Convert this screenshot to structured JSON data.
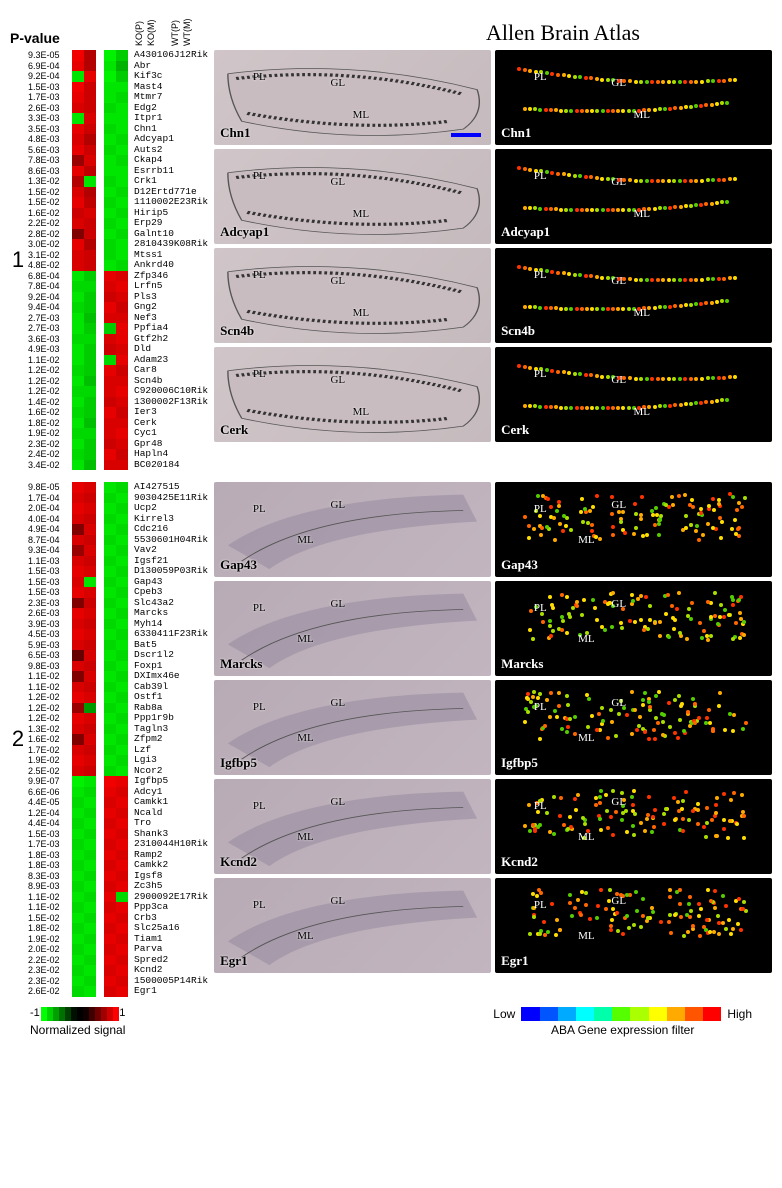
{
  "headers": {
    "pvalue": "P-value",
    "columns": [
      "KO(P)",
      "KO(M)",
      "WT(P)",
      "WT(M)"
    ],
    "atlas_title": "Allen Brain Atlas"
  },
  "section_labels": [
    "1",
    "2"
  ],
  "group1a": [
    {
      "p": "9.3E-05",
      "g": "A430106J12Rik",
      "c": [
        0.95,
        0.7,
        -0.95,
        -0.8
      ]
    },
    {
      "p": "6.9E-04",
      "g": "Abr",
      "c": [
        0.9,
        0.7,
        -0.9,
        -0.7
      ]
    },
    {
      "p": "9.2E-04",
      "g": "Kif3c",
      "c": [
        -0.9,
        0.9,
        -0.95,
        -0.8
      ]
    },
    {
      "p": "1.5E-03",
      "g": "Mast4",
      "c": [
        0.95,
        0.8,
        -0.9,
        -0.9
      ]
    },
    {
      "p": "1.7E-03",
      "g": "Mtmr7",
      "c": [
        0.9,
        0.8,
        -0.9,
        -0.85
      ]
    },
    {
      "p": "2.6E-03",
      "g": "Edg2",
      "c": [
        0.85,
        0.8,
        -0.85,
        -0.9
      ]
    },
    {
      "p": "3.3E-03",
      "g": "Itpr1",
      "c": [
        -0.9,
        0.85,
        -0.9,
        -0.9
      ]
    },
    {
      "p": "3.5E-03",
      "g": "Chn1",
      "c": [
        0.9,
        0.8,
        -0.85,
        -0.9
      ]
    },
    {
      "p": "4.8E-03",
      "g": "Adcyap1",
      "c": [
        0.85,
        0.7,
        -0.9,
        -0.85
      ]
    },
    {
      "p": "5.6E-03",
      "g": "Auts2",
      "c": [
        0.9,
        0.8,
        -0.85,
        -0.9
      ]
    },
    {
      "p": "7.8E-03",
      "g": "Ckap4",
      "c": [
        0.6,
        0.85,
        -0.9,
        -0.85
      ]
    },
    {
      "p": "8.6E-03",
      "g": "Esrrb11",
      "c": [
        0.9,
        0.75,
        -0.9,
        -0.9
      ]
    },
    {
      "p": "1.3E-02",
      "g": "Crk1",
      "c": [
        0.7,
        -0.9,
        -0.85,
        -0.9
      ]
    },
    {
      "p": "1.5E-02",
      "g": "D12Ertd771e",
      "c": [
        0.85,
        0.7,
        -0.9,
        -0.85
      ]
    },
    {
      "p": "1.5E-02",
      "g": "1110002E23Rik",
      "c": [
        0.9,
        0.75,
        -0.85,
        -0.9
      ]
    },
    {
      "p": "1.6E-02",
      "g": "Hirip5",
      "c": [
        0.8,
        0.85,
        -0.9,
        -0.85
      ]
    },
    {
      "p": "2.2E-02",
      "g": "Erp29",
      "c": [
        0.85,
        0.8,
        -0.85,
        -0.9
      ]
    },
    {
      "p": "2.8E-02",
      "g": "Galnt10",
      "c": [
        0.5,
        0.8,
        -0.9,
        -0.85
      ]
    },
    {
      "p": "3.0E-02",
      "g": "2810439K08Rik",
      "c": [
        0.9,
        0.7,
        -0.85,
        -0.9
      ]
    },
    {
      "p": "3.1E-02",
      "g": "Mtss1",
      "c": [
        0.85,
        0.8,
        -0.85,
        -0.9
      ]
    },
    {
      "p": "4.8E-02",
      "g": "Ankrd40",
      "c": [
        0.85,
        0.8,
        -0.9,
        -0.85
      ]
    }
  ],
  "group1b": [
    {
      "p": "6.8E-04",
      "g": "Zfp346",
      "c": [
        -0.9,
        -0.8,
        0.9,
        0.85
      ]
    },
    {
      "p": "7.8E-04",
      "g": "Lrfn5",
      "c": [
        -0.85,
        -0.85,
        0.85,
        0.9
      ]
    },
    {
      "p": "9.2E-04",
      "g": "Pls3",
      "c": [
        -0.9,
        -0.8,
        0.8,
        0.85
      ]
    },
    {
      "p": "9.4E-04",
      "g": "Gng2",
      "c": [
        -0.85,
        -0.8,
        0.9,
        0.8
      ]
    },
    {
      "p": "2.7E-03",
      "g": "Nef3",
      "c": [
        -0.9,
        -0.75,
        0.85,
        0.85
      ]
    },
    {
      "p": "2.7E-03",
      "g": "Ppfia4",
      "c": [
        -0.9,
        -0.8,
        -0.8,
        0.9
      ]
    },
    {
      "p": "3.6E-03",
      "g": "Gtf2h2",
      "c": [
        -0.85,
        -0.85,
        0.85,
        0.9
      ]
    },
    {
      "p": "4.9E-03",
      "g": "Dld",
      "c": [
        -0.9,
        -0.8,
        0.8,
        0.85
      ]
    },
    {
      "p": "1.1E-02",
      "g": "Adam23",
      "c": [
        -0.9,
        -0.8,
        -0.85,
        0.9
      ]
    },
    {
      "p": "1.2E-02",
      "g": "Car8",
      "c": [
        -0.85,
        -0.8,
        0.9,
        0.8
      ]
    },
    {
      "p": "1.2E-02",
      "g": "Scn4b",
      "c": [
        -0.9,
        -0.75,
        0.85,
        0.85
      ]
    },
    {
      "p": "1.2E-02",
      "g": "C920006C10Rik",
      "c": [
        -0.85,
        -0.85,
        0.85,
        0.9
      ]
    },
    {
      "p": "1.4E-02",
      "g": "1300002F13Rik",
      "c": [
        -0.9,
        -0.8,
        0.8,
        0.85
      ]
    },
    {
      "p": "1.6E-02",
      "g": "Ier3",
      "c": [
        -0.85,
        -0.8,
        0.9,
        0.8
      ]
    },
    {
      "p": "1.8E-02",
      "g": "Cerk",
      "c": [
        -0.9,
        -0.75,
        0.85,
        0.85
      ]
    },
    {
      "p": "1.9E-02",
      "g": "Cyc1",
      "c": [
        -0.85,
        -0.85,
        0.85,
        0.9
      ]
    },
    {
      "p": "2.3E-02",
      "g": "Gpr48",
      "c": [
        -0.9,
        -0.8,
        0.8,
        0.85
      ]
    },
    {
      "p": "2.4E-02",
      "g": "Hapln4",
      "c": [
        -0.85,
        -0.8,
        0.9,
        0.8
      ]
    },
    {
      "p": "3.4E-02",
      "g": "BC020184",
      "c": [
        -0.9,
        -0.75,
        0.85,
        0.85
      ]
    }
  ],
  "group2a": [
    {
      "p": "9.8E-05",
      "g": "AI427515",
      "c": [
        0.9,
        0.85,
        -0.9,
        -0.85
      ]
    },
    {
      "p": "1.7E-04",
      "g": "9030425E11Rik",
      "c": [
        0.85,
        0.8,
        -0.85,
        -0.9
      ]
    },
    {
      "p": "2.0E-04",
      "g": "Ucp2",
      "c": [
        0.9,
        0.85,
        -0.9,
        -0.85
      ]
    },
    {
      "p": "4.0E-04",
      "g": "Kirrel3",
      "c": [
        0.85,
        0.8,
        -0.85,
        -0.9
      ]
    },
    {
      "p": "4.9E-04",
      "g": "Cdc216",
      "c": [
        0.5,
        0.85,
        -0.9,
        -0.85
      ]
    },
    {
      "p": "8.7E-04",
      "g": "5530601H04Rik",
      "c": [
        0.85,
        0.8,
        -0.85,
        -0.9
      ]
    },
    {
      "p": "9.3E-04",
      "g": "Vav2",
      "c": [
        0.6,
        0.85,
        -0.9,
        -0.85
      ]
    },
    {
      "p": "1.1E-03",
      "g": "Igsf21",
      "c": [
        0.85,
        0.8,
        -0.85,
        -0.9
      ]
    },
    {
      "p": "1.5E-03",
      "g": "D130059P03Rik",
      "c": [
        0.9,
        0.85,
        -0.9,
        -0.85
      ]
    },
    {
      "p": "1.5E-03",
      "g": "Gap43",
      "c": [
        0.85,
        -0.9,
        -0.85,
        -0.9
      ]
    },
    {
      "p": "1.5E-03",
      "g": "Cpeb3",
      "c": [
        0.9,
        0.85,
        -0.9,
        -0.85
      ]
    },
    {
      "p": "2.3E-03",
      "g": "Slc43a2",
      "c": [
        0.5,
        0.8,
        -0.85,
        -0.9
      ]
    },
    {
      "p": "2.6E-03",
      "g": "Marcks",
      "c": [
        0.9,
        0.85,
        -0.9,
        -0.85
      ]
    },
    {
      "p": "3.9E-03",
      "g": "Myh14",
      "c": [
        0.85,
        0.8,
        -0.85,
        -0.9
      ]
    },
    {
      "p": "4.5E-03",
      "g": "6330411F23Rik",
      "c": [
        0.9,
        0.85,
        -0.9,
        -0.85
      ]
    },
    {
      "p": "5.9E-03",
      "g": "Bat5",
      "c": [
        0.85,
        0.8,
        -0.85,
        -0.9
      ]
    },
    {
      "p": "6.5E-03",
      "g": "Dscr1l2",
      "c": [
        0.4,
        0.85,
        -0.9,
        -0.85
      ]
    },
    {
      "p": "9.8E-03",
      "g": "Foxp1",
      "c": [
        0.85,
        0.8,
        -0.85,
        -0.9
      ]
    },
    {
      "p": "1.1E-02",
      "g": "DXImx46e",
      "c": [
        0.5,
        0.85,
        -0.9,
        -0.85
      ]
    },
    {
      "p": "1.1E-02",
      "g": "Cab39l",
      "c": [
        0.85,
        0.8,
        -0.85,
        -0.9
      ]
    },
    {
      "p": "1.2E-02",
      "g": "Ostf1",
      "c": [
        0.9,
        0.85,
        -0.9,
        -0.85
      ]
    },
    {
      "p": "1.2E-02",
      "g": "Rab8a",
      "c": [
        0.6,
        -0.6,
        -0.85,
        -0.9
      ]
    },
    {
      "p": "1.2E-02",
      "g": "Ppp1r9b",
      "c": [
        0.9,
        0.85,
        -0.9,
        -0.85
      ]
    },
    {
      "p": "1.3E-02",
      "g": "Tagln3",
      "c": [
        0.85,
        0.8,
        -0.85,
        -0.9
      ]
    },
    {
      "p": "1.6E-02",
      "g": "Zfpm2",
      "c": [
        0.5,
        0.85,
        -0.9,
        -0.85
      ]
    },
    {
      "p": "1.7E-02",
      "g": "Lzf",
      "c": [
        0.85,
        0.8,
        -0.85,
        -0.9
      ]
    },
    {
      "p": "1.9E-02",
      "g": "Lgi3",
      "c": [
        0.9,
        0.85,
        -0.9,
        -0.85
      ]
    },
    {
      "p": "2.5E-02",
      "g": "Ncor2",
      "c": [
        0.85,
        0.8,
        -0.85,
        -0.9
      ]
    }
  ],
  "group2b": [
    {
      "p": "9.9E-07",
      "g": "Igfbp5",
      "c": [
        -0.95,
        -0.9,
        0.95,
        0.9
      ]
    },
    {
      "p": "6.6E-06",
      "g": "Adcy1",
      "c": [
        -0.9,
        -0.85,
        0.9,
        0.85
      ]
    },
    {
      "p": "4.4E-05",
      "g": "Camkk1",
      "c": [
        -0.85,
        -0.9,
        0.85,
        0.9
      ]
    },
    {
      "p": "1.2E-04",
      "g": "Ncald",
      "c": [
        -0.9,
        -0.85,
        0.9,
        0.85
      ]
    },
    {
      "p": "4.4E-04",
      "g": "Tro",
      "c": [
        -0.85,
        -0.9,
        0.85,
        0.9
      ]
    },
    {
      "p": "1.5E-03",
      "g": "Shank3",
      "c": [
        -0.9,
        -0.85,
        0.9,
        0.85
      ]
    },
    {
      "p": "1.7E-03",
      "g": "2310044H10Rik",
      "c": [
        -0.85,
        -0.9,
        0.85,
        0.9
      ]
    },
    {
      "p": "1.8E-03",
      "g": "Ramp2",
      "c": [
        -0.9,
        -0.85,
        0.9,
        0.85
      ]
    },
    {
      "p": "1.8E-03",
      "g": "Camkk2",
      "c": [
        -0.85,
        -0.9,
        0.85,
        0.9
      ]
    },
    {
      "p": "8.3E-03",
      "g": "Igsf8",
      "c": [
        -0.9,
        -0.85,
        0.9,
        0.85
      ]
    },
    {
      "p": "8.9E-03",
      "g": "Zc3h5",
      "c": [
        -0.85,
        -0.9,
        0.85,
        0.9
      ]
    },
    {
      "p": "1.1E-02",
      "g": "2900092E17Rik",
      "c": [
        -0.9,
        -0.85,
        0.9,
        -0.85
      ]
    },
    {
      "p": "1.1E-02",
      "g": "Ppp3ca",
      "c": [
        -0.85,
        -0.9,
        0.85,
        0.9
      ]
    },
    {
      "p": "1.5E-02",
      "g": "Crb3",
      "c": [
        -0.9,
        -0.85,
        0.9,
        0.85
      ]
    },
    {
      "p": "1.8E-02",
      "g": "Slc25a16",
      "c": [
        -0.85,
        -0.9,
        0.85,
        0.9
      ]
    },
    {
      "p": "1.9E-02",
      "g": "Tiam1",
      "c": [
        -0.9,
        -0.85,
        0.9,
        0.85
      ]
    },
    {
      "p": "2.0E-02",
      "g": "Parva",
      "c": [
        -0.85,
        -0.9,
        0.85,
        0.9
      ]
    },
    {
      "p": "2.2E-02",
      "g": "Spred2",
      "c": [
        -0.9,
        -0.85,
        0.9,
        0.85
      ]
    },
    {
      "p": "2.3E-02",
      "g": "Kcnd2",
      "c": [
        -0.85,
        -0.9,
        0.85,
        0.9
      ]
    },
    {
      "p": "2.3E-02",
      "g": "1500005P14Rik",
      "c": [
        -0.9,
        -0.85,
        0.9,
        0.85
      ]
    },
    {
      "p": "2.6E-02",
      "g": "Egr1",
      "c": [
        -0.85,
        -0.9,
        0.85,
        0.9
      ]
    }
  ],
  "atlas_panels_1": [
    {
      "gene": "Chn1",
      "annots": [
        "PL",
        "GL",
        "ML"
      ],
      "scale_bar": true
    },
    {
      "gene": "Adcyap1",
      "annots": [
        "PL",
        "GL",
        "ML"
      ]
    },
    {
      "gene": "Scn4b",
      "annots": [
        "PL",
        "GL",
        "ML"
      ]
    },
    {
      "gene": "Cerk",
      "annots": [
        "PL",
        "GL",
        "ML"
      ]
    }
  ],
  "atlas_panels_2": [
    {
      "gene": "Gap43",
      "annots": [
        "PL",
        "GL",
        "ML"
      ]
    },
    {
      "gene": "Marcks",
      "annots": [
        "PL",
        "GL",
        "ML"
      ]
    },
    {
      "gene": "Igfbp5",
      "annots": [
        "PL",
        "GL",
        "ML"
      ]
    },
    {
      "gene": "Kcnd2",
      "annots": [
        "PL",
        "GL",
        "ML"
      ]
    },
    {
      "gene": "Egr1",
      "annots": [
        "PL",
        "GL",
        "ML"
      ]
    }
  ],
  "legend": {
    "signal_min": "-1",
    "signal_max": "1",
    "signal_label": "Normalized signal",
    "aba_low": "Low",
    "aba_high": "High",
    "aba_label": "ABA Gene expression filter"
  },
  "signal_colors": [
    "#00ff00",
    "#00d000",
    "#00a000",
    "#007000",
    "#004000",
    "#001000",
    "#000000",
    "#100000",
    "#400000",
    "#700000",
    "#a00000",
    "#d00000",
    "#ff0000"
  ],
  "aba_colors": [
    "#0000ff",
    "#0055ff",
    "#00aaff",
    "#00ffff",
    "#00ffaa",
    "#55ff00",
    "#aaff00",
    "#ffff00",
    "#ffaa00",
    "#ff5500",
    "#ff0000"
  ]
}
